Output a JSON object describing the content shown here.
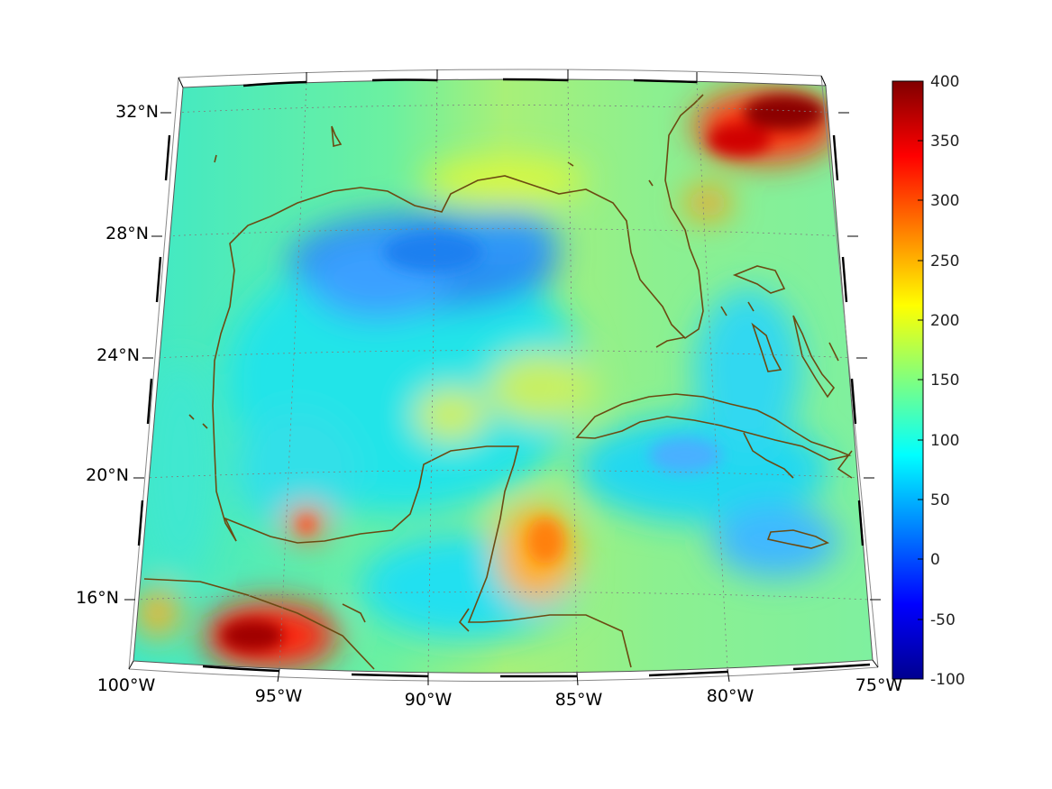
{
  "map": {
    "lat_labels": [
      "32°N",
      "28°N",
      "24°N",
      "20°N",
      "16°N"
    ],
    "lon_labels": [
      "100°W",
      "95°W",
      "90°W",
      "85°W",
      "80°W",
      "75°W"
    ],
    "coastline_color": "#6b4a12",
    "features": [
      "Gulf of Mexico",
      "Florida peninsula",
      "Yucatán Peninsula",
      "Cuba",
      "Jamaica",
      "Bahamas",
      "Central America coast"
    ]
  },
  "colorbar": {
    "ticks": [
      "400",
      "350",
      "300",
      "250",
      "200",
      "150",
      "100",
      "50",
      "0",
      "-50",
      "-100"
    ],
    "min": -100,
    "max": 400,
    "colormap": "jet"
  }
}
